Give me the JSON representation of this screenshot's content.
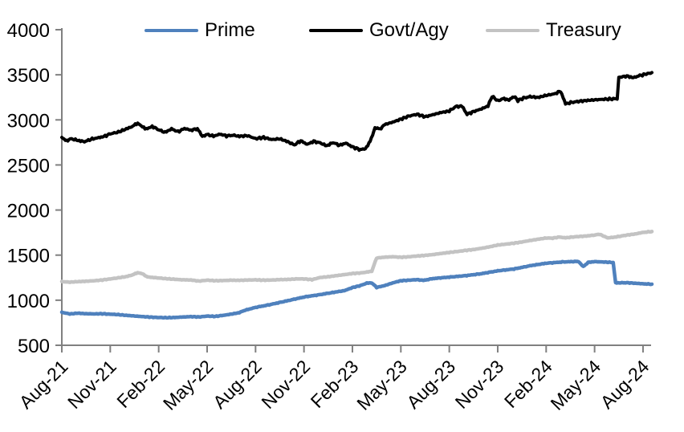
{
  "chart_data": {
    "type": "line",
    "title": "",
    "xlabel": "",
    "ylabel": "",
    "x_unit": "months since Aug-21",
    "categories": [
      "Aug-21",
      "Nov-21",
      "Feb-22",
      "May-22",
      "Aug-22",
      "Nov-22",
      "Feb-23",
      "May-23",
      "Aug-23",
      "Nov-23",
      "Feb-24",
      "May-24",
      "Aug-24"
    ],
    "category_month_step": 3,
    "y_ticks": [
      500,
      1000,
      1500,
      2000,
      2500,
      3000,
      3500,
      4000
    ],
    "ylim": [
      500,
      4000
    ],
    "xlim_months": [
      0,
      36.55
    ],
    "grid": false,
    "legend_position": "top",
    "axis_color": "#808080",
    "label_color": "#000000",
    "series": [
      {
        "name": "Prime",
        "color": "#4F81BD",
        "stroke_width": 4.5,
        "points": [
          [
            0,
            865
          ],
          [
            0.5,
            848
          ],
          [
            1,
            856
          ],
          [
            1.5,
            850
          ],
          [
            2,
            848
          ],
          [
            2.5,
            850
          ],
          [
            3,
            845
          ],
          [
            3.5,
            840
          ],
          [
            4,
            832
          ],
          [
            4.5,
            825
          ],
          [
            5,
            818
          ],
          [
            5.5,
            812
          ],
          [
            6,
            808
          ],
          [
            6.5,
            806
          ],
          [
            7,
            808
          ],
          [
            7.5,
            814
          ],
          [
            8,
            818
          ],
          [
            8.5,
            814
          ],
          [
            9,
            824
          ],
          [
            9.5,
            820
          ],
          [
            10,
            832
          ],
          [
            10.5,
            846
          ],
          [
            11,
            862
          ],
          [
            11.3,
            886
          ],
          [
            12,
            920
          ],
          [
            13,
            955
          ],
          [
            14,
            995
          ],
          [
            15,
            1035
          ],
          [
            16,
            1062
          ],
          [
            17,
            1092
          ],
          [
            17.5,
            1106
          ],
          [
            18,
            1140
          ],
          [
            18.5,
            1162
          ],
          [
            18.9,
            1190
          ],
          [
            19.2,
            1192
          ],
          [
            19.5,
            1142
          ],
          [
            20,
            1162
          ],
          [
            20.5,
            1192
          ],
          [
            21,
            1216
          ],
          [
            21.5,
            1222
          ],
          [
            22,
            1228
          ],
          [
            22.4,
            1220
          ],
          [
            23,
            1240
          ],
          [
            24,
            1256
          ],
          [
            25,
            1272
          ],
          [
            26,
            1294
          ],
          [
            27,
            1326
          ],
          [
            28,
            1346
          ],
          [
            29,
            1382
          ],
          [
            30,
            1410
          ],
          [
            31,
            1424
          ],
          [
            32,
            1430
          ],
          [
            32.3,
            1372
          ],
          [
            32.6,
            1420
          ],
          [
            33,
            1428
          ],
          [
            33.5,
            1424
          ],
          [
            34,
            1420
          ],
          [
            34.15,
            1418
          ],
          [
            34.3,
            1192
          ],
          [
            35,
            1194
          ],
          [
            35.5,
            1188
          ],
          [
            36,
            1182
          ],
          [
            36.55,
            1178
          ]
        ]
      },
      {
        "name": "Govt/Agy",
        "color": "#000000",
        "stroke_width": 4,
        "points": [
          [
            0,
            2800
          ],
          [
            0.3,
            2770
          ],
          [
            0.6,
            2790
          ],
          [
            1,
            2772
          ],
          [
            1.4,
            2758
          ],
          [
            1.8,
            2785
          ],
          [
            2.2,
            2800
          ],
          [
            2.6,
            2815
          ],
          [
            3,
            2845
          ],
          [
            3.5,
            2865
          ],
          [
            4,
            2900
          ],
          [
            4.4,
            2930
          ],
          [
            4.7,
            2965
          ],
          [
            5,
            2920
          ],
          [
            5.3,
            2900
          ],
          [
            5.6,
            2928
          ],
          [
            6,
            2890
          ],
          [
            6.4,
            2862
          ],
          [
            6.8,
            2900
          ],
          [
            7.2,
            2868
          ],
          [
            7.6,
            2905
          ],
          [
            8,
            2885
          ],
          [
            8.4,
            2902
          ],
          [
            8.7,
            2818
          ],
          [
            9,
            2838
          ],
          [
            9.4,
            2820
          ],
          [
            9.8,
            2842
          ],
          [
            10.2,
            2822
          ],
          [
            10.6,
            2830
          ],
          [
            11,
            2818
          ],
          [
            11.5,
            2825
          ],
          [
            12,
            2792
          ],
          [
            12.5,
            2805
          ],
          [
            13,
            2782
          ],
          [
            13.5,
            2790
          ],
          [
            14,
            2758
          ],
          [
            14.4,
            2722
          ],
          [
            14.8,
            2768
          ],
          [
            15.2,
            2728
          ],
          [
            15.6,
            2762
          ],
          [
            16,
            2745
          ],
          [
            16.4,
            2712
          ],
          [
            16.8,
            2748
          ],
          [
            17.2,
            2718
          ],
          [
            17.6,
            2742
          ],
          [
            18,
            2700
          ],
          [
            18.5,
            2668
          ],
          [
            18.8,
            2680
          ],
          [
            19.1,
            2760
          ],
          [
            19.4,
            2912
          ],
          [
            19.7,
            2898
          ],
          [
            20,
            2948
          ],
          [
            20.5,
            2975
          ],
          [
            21,
            3008
          ],
          [
            21.5,
            3042
          ],
          [
            22,
            3062
          ],
          [
            22.5,
            3035
          ],
          [
            23,
            3058
          ],
          [
            23.5,
            3082
          ],
          [
            24,
            3098
          ],
          [
            24.4,
            3148
          ],
          [
            24.8,
            3152
          ],
          [
            25.1,
            3062
          ],
          [
            25.5,
            3092
          ],
          [
            26,
            3122
          ],
          [
            26.4,
            3155
          ],
          [
            26.65,
            3262
          ],
          [
            27,
            3212
          ],
          [
            27.4,
            3238
          ],
          [
            27.7,
            3218
          ],
          [
            28,
            3262
          ],
          [
            28.25,
            3215
          ],
          [
            28.6,
            3242
          ],
          [
            29,
            3258
          ],
          [
            29.5,
            3248
          ],
          [
            30,
            3272
          ],
          [
            30.5,
            3288
          ],
          [
            30.9,
            3318
          ],
          [
            31.2,
            3178
          ],
          [
            31.6,
            3195
          ],
          [
            32,
            3205
          ],
          [
            32.5,
            3215
          ],
          [
            33,
            3222
          ],
          [
            33.5,
            3228
          ],
          [
            34,
            3232
          ],
          [
            34.4,
            3235
          ],
          [
            34.5,
            3472
          ],
          [
            35,
            3485
          ],
          [
            35.4,
            3468
          ],
          [
            35.8,
            3492
          ],
          [
            36.2,
            3508
          ],
          [
            36.55,
            3525
          ]
        ]
      },
      {
        "name": "Treasury",
        "color": "#C3C3C3",
        "stroke_width": 4.5,
        "points": [
          [
            0,
            1206
          ],
          [
            0.5,
            1200
          ],
          [
            1,
            1206
          ],
          [
            1.5,
            1210
          ],
          [
            2,
            1216
          ],
          [
            2.5,
            1224
          ],
          [
            3,
            1236
          ],
          [
            3.5,
            1248
          ],
          [
            4,
            1262
          ],
          [
            4.4,
            1282
          ],
          [
            4.7,
            1306
          ],
          [
            5,
            1292
          ],
          [
            5.3,
            1258
          ],
          [
            6,
            1246
          ],
          [
            6.5,
            1238
          ],
          [
            7,
            1232
          ],
          [
            7.5,
            1226
          ],
          [
            8,
            1224
          ],
          [
            8.5,
            1212
          ],
          [
            9,
            1222
          ],
          [
            9.5,
            1216
          ],
          [
            10,
            1218
          ],
          [
            10.5,
            1222
          ],
          [
            11,
            1220
          ],
          [
            11.5,
            1224
          ],
          [
            12,
            1226
          ],
          [
            12.5,
            1222
          ],
          [
            13,
            1224
          ],
          [
            13.5,
            1228
          ],
          [
            14,
            1230
          ],
          [
            14.5,
            1236
          ],
          [
            15,
            1236
          ],
          [
            15.5,
            1228
          ],
          [
            16,
            1252
          ],
          [
            16.5,
            1260
          ],
          [
            17,
            1272
          ],
          [
            17.5,
            1284
          ],
          [
            18,
            1296
          ],
          [
            18.5,
            1302
          ],
          [
            18.9,
            1312
          ],
          [
            19.2,
            1322
          ],
          [
            19.5,
            1468
          ],
          [
            20,
            1477
          ],
          [
            20.5,
            1482
          ],
          [
            21,
            1476
          ],
          [
            21.5,
            1482
          ],
          [
            22,
            1490
          ],
          [
            22.5,
            1497
          ],
          [
            23,
            1506
          ],
          [
            23.5,
            1518
          ],
          [
            24,
            1530
          ],
          [
            24.5,
            1540
          ],
          [
            25,
            1552
          ],
          [
            25.5,
            1562
          ],
          [
            26,
            1576
          ],
          [
            26.5,
            1592
          ],
          [
            27,
            1612
          ],
          [
            27.5,
            1622
          ],
          [
            28,
            1632
          ],
          [
            28.5,
            1646
          ],
          [
            29,
            1662
          ],
          [
            29.5,
            1676
          ],
          [
            30,
            1690
          ],
          [
            30.4,
            1688
          ],
          [
            30.8,
            1700
          ],
          [
            31.2,
            1692
          ],
          [
            31.6,
            1700
          ],
          [
            32,
            1706
          ],
          [
            32.5,
            1712
          ],
          [
            33,
            1722
          ],
          [
            33.3,
            1732
          ],
          [
            33.8,
            1692
          ],
          [
            34.2,
            1698
          ],
          [
            34.6,
            1710
          ],
          [
            35,
            1722
          ],
          [
            35.5,
            1734
          ],
          [
            36,
            1752
          ],
          [
            36.55,
            1762
          ]
        ]
      }
    ]
  },
  "legend": {
    "items": [
      {
        "label": "Prime"
      },
      {
        "label": "Govt/Agy"
      },
      {
        "label": "Treasury"
      }
    ]
  }
}
